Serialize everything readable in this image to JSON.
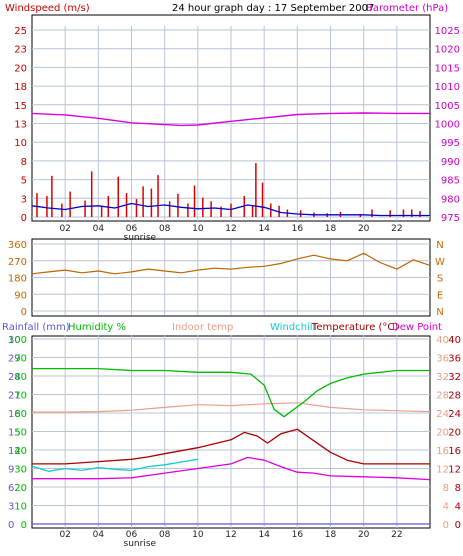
{
  "chart_data": [
    {
      "type": "line",
      "panel": "wind_pressure",
      "title": "24 hour graph day : 17 September 2007",
      "left_axis_label": "Windspeed (m/s)",
      "right_axis_label": "Barometer (hPa)",
      "left_ticks": [
        "25",
        "23",
        "20",
        "18",
        "15",
        "13",
        "10",
        "8",
        "5",
        "3",
        "0"
      ],
      "right_ticks": [
        "1025",
        "1020",
        "1015",
        "1010",
        "1005",
        "1000",
        "995",
        "990",
        "985",
        "980",
        "975"
      ],
      "left_range": [
        0,
        25
      ],
      "right_range": [
        975,
        1025
      ],
      "x_ticks": [
        "02",
        "04",
        "06",
        "08",
        "10",
        "12",
        "14",
        "16",
        "18",
        "20",
        "22"
      ],
      "x_marker_label": "sunrise",
      "colors": {
        "gust": "#dd0000",
        "avg": "#0000cc",
        "pressure": "#dd00dd",
        "grid": "#b8c4d8",
        "left_axis": "#cc0000",
        "right_axis": "#cc00cc"
      },
      "series": [
        {
          "role": "pressure",
          "x": [
            0,
            2,
            4,
            6,
            8,
            9,
            10,
            12,
            14,
            16,
            18,
            20,
            22,
            24
          ],
          "y": [
            1002.7,
            1002.3,
            1001.4,
            1000.2,
            999.7,
            999.5,
            999.6,
            1000.6,
            1001.5,
            1002.4,
            1002.7,
            1002.8,
            1002.7,
            1002.7
          ]
        },
        {
          "role": "gust",
          "x": [
            0.3,
            0.9,
            1.2,
            1.8,
            2.3,
            3.2,
            3.6,
            4.2,
            4.6,
            5.2,
            5.7,
            6.3,
            6.7,
            7.2,
            7.6,
            8.3,
            8.8,
            9.4,
            9.8,
            10.3,
            10.8,
            11.4,
            12.0,
            12.8,
            13.3,
            13.5,
            13.9,
            14.4,
            14.9,
            15.4,
            16.2,
            17.0,
            17.8,
            18.6,
            19.8,
            20.5,
            21.6,
            22.4,
            22.9,
            23.4
          ],
          "y": [
            3.2,
            2.8,
            5.5,
            1.8,
            3.4,
            2.2,
            6.1,
            1.5,
            2.8,
            5.4,
            3.2,
            2.4,
            4.1,
            3.8,
            5.6,
            2.1,
            3.1,
            1.8,
            4.2,
            2.6,
            2.1,
            1.4,
            1.8,
            2.8,
            1.6,
            7.2,
            4.6,
            1.8,
            1.5,
            1.0,
            0.9,
            0.6,
            0.5,
            0.7,
            0.4,
            1.0,
            0.9,
            1.0,
            1.0,
            0.8
          ]
        },
        {
          "role": "avg",
          "x": [
            0,
            1,
            2,
            3,
            4,
            5,
            6,
            7,
            8,
            9,
            10,
            11,
            12,
            13,
            14,
            15,
            16,
            17,
            18,
            19,
            20,
            21,
            22,
            23,
            24
          ],
          "y": [
            1.5,
            1.2,
            1.0,
            1.4,
            1.5,
            1.2,
            1.8,
            1.4,
            1.6,
            1.3,
            1.1,
            1.2,
            1.0,
            1.6,
            1.3,
            0.6,
            0.4,
            0.3,
            0.3,
            0.3,
            0.3,
            0.2,
            0.2,
            0.2,
            0.2
          ]
        }
      ]
    },
    {
      "type": "line",
      "panel": "wind_direction",
      "left_ticks": [
        "360",
        "270",
        "180",
        "90",
        "0"
      ],
      "right_ticks": [
        "N",
        "W",
        "S",
        "E",
        "N"
      ],
      "left_range": [
        0,
        360
      ],
      "colors": {
        "direction": "#bf6500",
        "grid": "#b8c4d8"
      },
      "series": [
        {
          "role": "direction",
          "x": [
            0,
            1,
            2,
            3,
            4,
            5,
            6,
            7,
            8,
            9,
            10,
            11,
            12,
            13,
            14,
            15,
            16,
            17,
            18,
            19,
            20,
            21,
            22,
            23,
            24
          ],
          "y": [
            200,
            210,
            220,
            205,
            215,
            200,
            210,
            225,
            215,
            205,
            220,
            230,
            225,
            235,
            240,
            255,
            280,
            300,
            280,
            270,
            310,
            260,
            225,
            275,
            245
          ]
        }
      ]
    },
    {
      "type": "line",
      "panel": "temperature_humidity",
      "legend": [
        "Rainfall (mm)",
        "Humidity %",
        "Indoor temp",
        "Windchill",
        "Temperature (°C)",
        "Dew Point"
      ],
      "legend_colors": [
        "#5a5ad8",
        "#00bb00",
        "#e8a088",
        "#11cccc",
        "#aa0000",
        "#dd00dd"
      ],
      "ticks_rain": [
        "30",
        "27",
        "24",
        "21",
        "18",
        "15",
        "12",
        "9",
        "6",
        "3",
        "0"
      ],
      "ticks_humidity": [
        "100",
        "90",
        "80",
        "70",
        "60",
        "50",
        "40",
        "30",
        "20",
        "10",
        "0"
      ],
      "ticks_indoor": [
        "40",
        "36",
        "32",
        "28",
        "24",
        "20",
        "16",
        "12",
        "8",
        "4",
        "0"
      ],
      "ticks_temp": [
        "40",
        "36",
        "32",
        "28",
        "24",
        "20",
        "16",
        "12",
        "8",
        "4",
        "0"
      ],
      "temp_range": [
        0,
        40
      ],
      "x_ticks": [
        "02",
        "04",
        "06",
        "08",
        "10",
        "12",
        "14",
        "16",
        "18",
        "20",
        "22"
      ],
      "x_marker_label": "sunrise",
      "series": [
        {
          "role": "humidity",
          "x": [
            0,
            2,
            4,
            6,
            8,
            10,
            12,
            13.2,
            14,
            14.6,
            15.2,
            15.8,
            16.4,
            17.2,
            18,
            19,
            20,
            21,
            22,
            23,
            24
          ],
          "y": [
            84,
            84,
            84,
            83,
            83,
            82,
            82,
            81,
            75,
            62,
            58,
            62,
            66,
            72,
            76,
            79,
            81,
            82,
            83,
            83,
            83
          ]
        },
        {
          "role": "indoor",
          "x": [
            0,
            2,
            4,
            6,
            8,
            10,
            12,
            14,
            16,
            18,
            20,
            22,
            24
          ],
          "y": [
            24.2,
            24.2,
            24.3,
            24.6,
            25.2,
            25.8,
            25.6,
            26.0,
            26.2,
            25.2,
            24.7,
            24.5,
            24.3
          ]
        },
        {
          "role": "temperature",
          "x": [
            0,
            2,
            4,
            6,
            7,
            8,
            10,
            12,
            12.8,
            13.6,
            14.2,
            15,
            16,
            17,
            18,
            19,
            20,
            21,
            22,
            24
          ],
          "y": [
            13.0,
            13.0,
            13.5,
            14.0,
            14.5,
            15.2,
            16.5,
            18.2,
            19.8,
            19.0,
            17.5,
            19.5,
            20.5,
            18.0,
            15.5,
            13.8,
            13.0,
            13.0,
            13.0,
            13.0
          ]
        },
        {
          "role": "windchill",
          "x": [
            0,
            1,
            2,
            3,
            4,
            5,
            6,
            7,
            8,
            9,
            10
          ],
          "y": [
            12.5,
            11.4,
            12.0,
            11.6,
            12.2,
            11.8,
            11.6,
            12.4,
            12.8,
            13.4,
            14.0
          ]
        },
        {
          "role": "dewpoint",
          "x": [
            0,
            2,
            4,
            6,
            8,
            10,
            12,
            13,
            14,
            15,
            16,
            17,
            18,
            20,
            22,
            24
          ],
          "y": [
            9.8,
            9.8,
            9.8,
            10.0,
            11.0,
            12.0,
            13.0,
            14.4,
            13.8,
            12.4,
            11.2,
            11.0,
            10.4,
            10.2,
            10.0,
            9.6
          ]
        },
        {
          "role": "rainfall",
          "x": [
            0,
            24
          ],
          "y": [
            0,
            0
          ]
        }
      ]
    }
  ]
}
